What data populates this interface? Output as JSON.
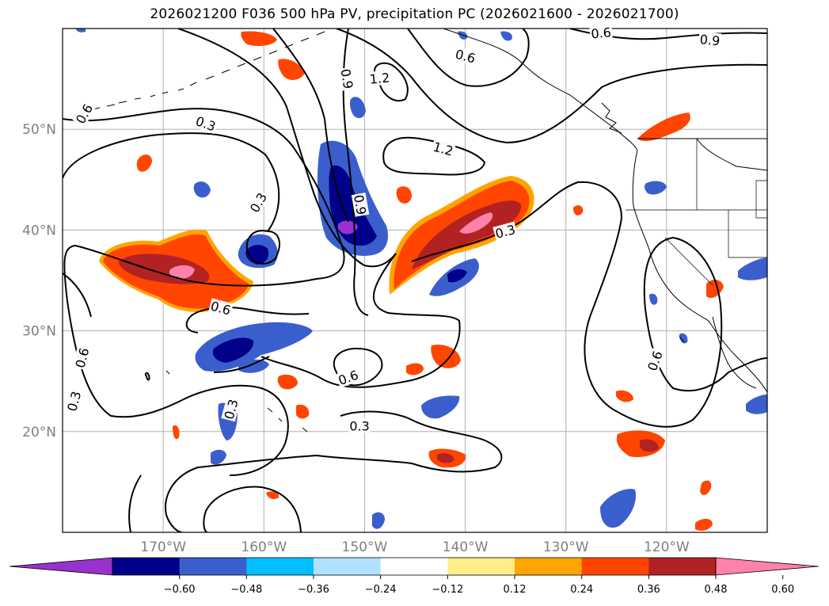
{
  "title": "2026021200 F036 500 hPa PV, precipitation PC (2026021600 - 2026021700)",
  "map": {
    "lon_range": [
      -180,
      -110
    ],
    "lat_range": [
      10,
      60
    ],
    "lat_ticks": [
      {
        "value": 50,
        "label": "50°N"
      },
      {
        "value": 40,
        "label": "40°N"
      },
      {
        "value": 30,
        "label": "30°N"
      },
      {
        "value": 20,
        "label": "20°N"
      }
    ],
    "lon_ticks": [
      {
        "value": -170,
        "label": "170°W"
      },
      {
        "value": -160,
        "label": "160°W"
      },
      {
        "value": -150,
        "label": "150°W"
      },
      {
        "value": -140,
        "label": "140°W"
      },
      {
        "value": -130,
        "label": "130°W"
      },
      {
        "value": -120,
        "label": "120°W"
      }
    ],
    "gridlines": true,
    "contour_labels": [
      {
        "text": "0.6",
        "lon": -177.8,
        "lat": 51.5,
        "rot": -60
      },
      {
        "text": "0.3",
        "lon": -165.8,
        "lat": 50.5,
        "rot": 20
      },
      {
        "text": "0.9",
        "lon": -151.8,
        "lat": 55.0,
        "rot": 80
      },
      {
        "text": "1.2",
        "lon": -148.5,
        "lat": 55.0,
        "rot": -5
      },
      {
        "text": "0.6",
        "lon": -140.0,
        "lat": 57.2,
        "rot": 15
      },
      {
        "text": "0.6",
        "lon": -126.5,
        "lat": 59.5,
        "rot": -5
      },
      {
        "text": "0.9",
        "lon": -115.7,
        "lat": 58.8,
        "rot": 5
      },
      {
        "text": "1.2",
        "lon": -142.2,
        "lat": 48.0,
        "rot": 15
      },
      {
        "text": "0.3",
        "lon": -160.5,
        "lat": 42.7,
        "rot": -60
      },
      {
        "text": "0.9",
        "lon": -150.5,
        "lat": 42.5,
        "rot": 80
      },
      {
        "text": "0.3",
        "lon": -136.0,
        "lat": 39.8,
        "rot": -15
      },
      {
        "text": "0.6",
        "lon": -164.3,
        "lat": 32.2,
        "rot": 15
      },
      {
        "text": "0.6",
        "lon": -178.0,
        "lat": 27.3,
        "rot": -75
      },
      {
        "text": "0.3",
        "lon": -178.8,
        "lat": 23.0,
        "rot": -75
      },
      {
        "text": "0.3",
        "lon": -163.2,
        "lat": 22.2,
        "rot": -75
      },
      {
        "text": "0.6",
        "lon": -151.6,
        "lat": 25.3,
        "rot": -20
      },
      {
        "text": "0.3",
        "lon": -150.5,
        "lat": 20.5,
        "rot": 0
      },
      {
        "text": "0.6",
        "lon": -121.1,
        "lat": 27.0,
        "rot": -70
      }
    ]
  },
  "colorbar": {
    "colors": [
      "#9932cc",
      "#00008b",
      "#3a5fcd",
      "#00bfff",
      "#b0e2ff",
      "#ffffff",
      "#ffec8b",
      "#ffa500",
      "#ff4500",
      "#b22222",
      "#ff82ab"
    ],
    "boundaries": [
      -0.72,
      -0.6,
      -0.48,
      -0.36,
      -0.24,
      -0.12,
      0.12,
      0.24,
      0.36,
      0.48,
      0.6,
      0.72
    ],
    "tick_labels": [
      "−0.60",
      "−0.48",
      "−0.36",
      "−0.24",
      "−0.12",
      "0.12",
      "0.24",
      "0.36",
      "0.48",
      "0.60"
    ],
    "extend": "both"
  }
}
